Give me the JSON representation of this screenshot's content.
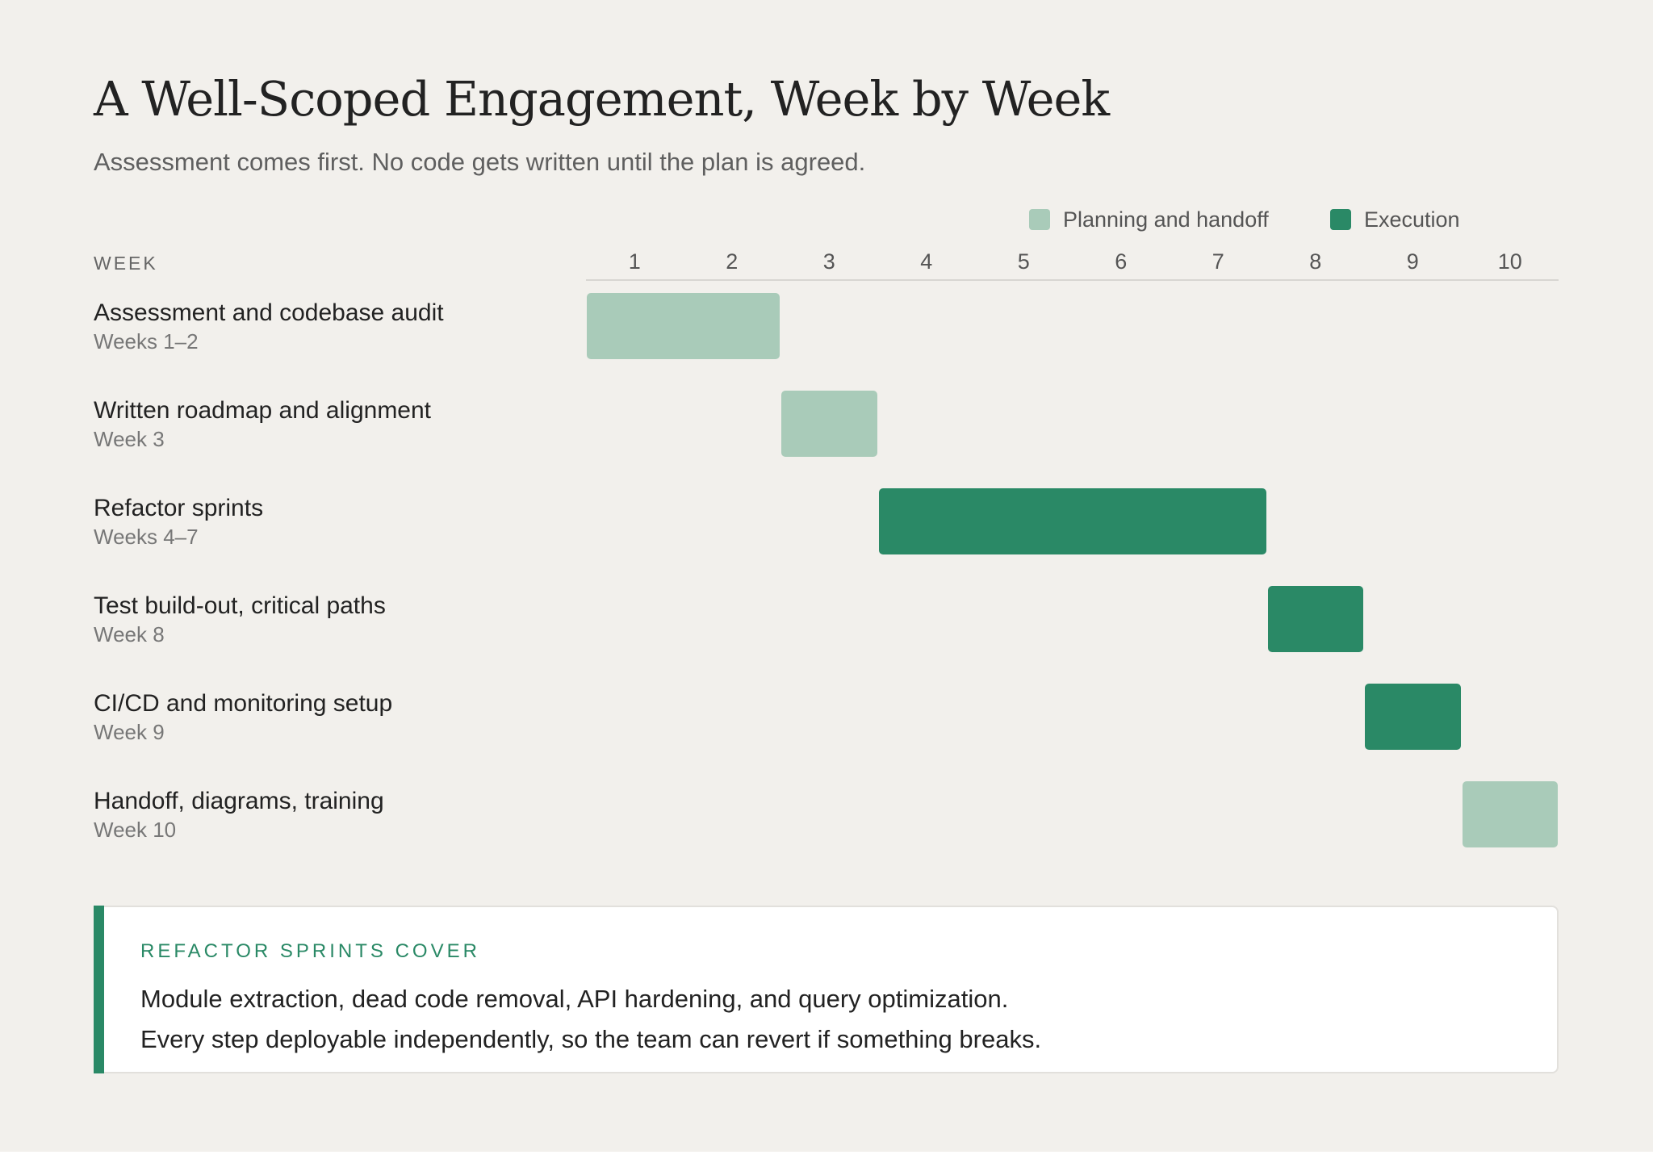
{
  "title": "A Well-Scoped Engagement, Week by Week",
  "subtitle": "Assessment comes first. No code gets written until the plan is agreed.",
  "colors": {
    "background": "#f2f0ec",
    "planning": "#a9cbb9",
    "execution": "#2a8966"
  },
  "legend": [
    {
      "label": "Planning and handoff",
      "phase": "planning"
    },
    {
      "label": "Execution",
      "phase": "execution"
    }
  ],
  "chart_data": {
    "type": "gantt",
    "x_header": "WEEK",
    "x_ticks": [
      "1",
      "2",
      "3",
      "4",
      "5",
      "6",
      "7",
      "8",
      "9",
      "10"
    ],
    "xlim": [
      1,
      10
    ],
    "legend_position": "top-right",
    "tasks": [
      {
        "name": "Assessment and codebase audit",
        "weeks_label": "Weeks 1–2",
        "start": 1,
        "end": 2,
        "phase": "planning"
      },
      {
        "name": "Written roadmap and alignment",
        "weeks_label": "Week 3",
        "start": 3,
        "end": 3,
        "phase": "planning"
      },
      {
        "name": "Refactor sprints",
        "weeks_label": "Weeks 4–7",
        "start": 4,
        "end": 7,
        "phase": "execution"
      },
      {
        "name": "Test build-out, critical paths",
        "weeks_label": "Week 8",
        "start": 8,
        "end": 8,
        "phase": "execution"
      },
      {
        "name": "CI/CD and monitoring setup",
        "weeks_label": "Week 9",
        "start": 9,
        "end": 9,
        "phase": "execution"
      },
      {
        "name": "Handoff, diagrams, training",
        "weeks_label": "Week 10",
        "start": 10,
        "end": 10,
        "phase": "planning"
      }
    ]
  },
  "note": {
    "heading": "REFACTOR SPRINTS COVER",
    "lines": [
      "Module extraction, dead code removal, API hardening, and query optimization.",
      "Every step deployable independently, so the team can revert if something breaks."
    ]
  }
}
